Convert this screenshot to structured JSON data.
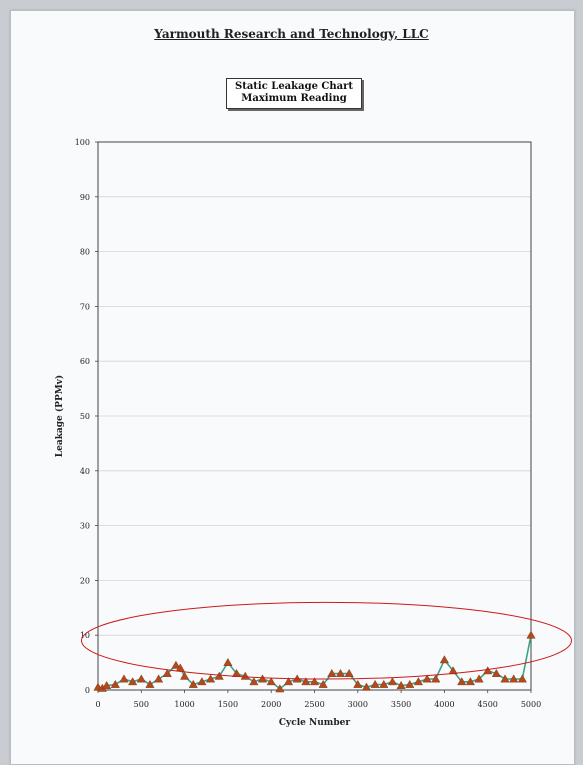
{
  "header": {
    "company": "Yarmouth Research and Technology, LLC"
  },
  "chart_data": {
    "type": "line",
    "title_lines": [
      "Static Leakage Chart",
      "Maximum Reading"
    ],
    "xlabel": "Cycle Number",
    "ylabel": "Leakage (PPMv)",
    "xlim": [
      0,
      5000
    ],
    "ylim": [
      0,
      100
    ],
    "xticks": [
      0,
      500,
      1000,
      1500,
      2000,
      2500,
      3000,
      3500,
      4000,
      4500,
      5000
    ],
    "yticks": [
      0,
      10,
      20,
      30,
      40,
      50,
      60,
      70,
      80,
      90,
      100
    ],
    "grid": "horizontal",
    "colors": {
      "line": "#3aa58a",
      "marker": "#b34a1e",
      "annotation": "#cc1a1a"
    },
    "annotation": {
      "shape": "ellipse",
      "highlight_y_range": [
        2,
        16
      ]
    },
    "series": [
      {
        "x": [
          0,
          50,
          100,
          200,
          300,
          400,
          500,
          600,
          700,
          800,
          900,
          950,
          1000,
          1100,
          1200,
          1300,
          1400,
          1500,
          1600,
          1700,
          1800,
          1900,
          2000,
          2100,
          2200,
          2300,
          2400,
          2500,
          2600,
          2700,
          2800,
          2900,
          3000,
          3100,
          3200,
          3300,
          3400,
          3500,
          3600,
          3700,
          3800,
          3900,
          4000,
          4100,
          4200,
          4300,
          4400,
          4500,
          4600,
          4700,
          4800,
          4900,
          5000
        ],
        "y": [
          0.5,
          0.3,
          0.8,
          1.0,
          2.0,
          1.5,
          2.0,
          1.0,
          2.0,
          3.0,
          4.5,
          4.0,
          2.5,
          1.0,
          1.5,
          2.0,
          2.5,
          5.0,
          3.0,
          2.5,
          1.5,
          2.0,
          1.5,
          0.2,
          1.5,
          2.0,
          1.5,
          1.5,
          1.0,
          3.0,
          3.0,
          3.0,
          1.0,
          0.5,
          1.0,
          1.0,
          1.5,
          0.8,
          1.0,
          1.5,
          2.0,
          2.0,
          5.5,
          3.5,
          1.5,
          1.5,
          2.0,
          3.5,
          3.0,
          2.0,
          2.0,
          2.0,
          10.0
        ]
      }
    ]
  }
}
